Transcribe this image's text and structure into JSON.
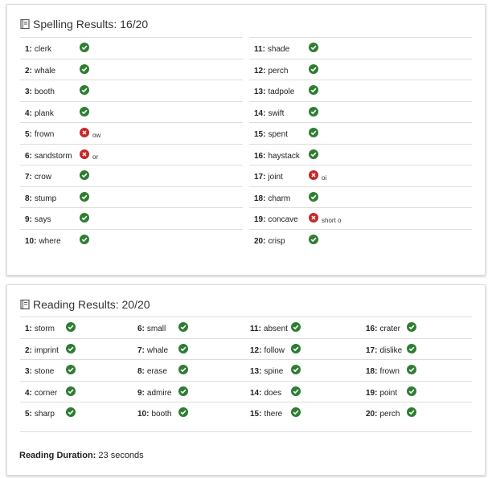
{
  "spelling": {
    "title": "Spelling Results: 16/20",
    "items": [
      {
        "number": "1:",
        "word": "clerk",
        "correct": true
      },
      {
        "number": "2:",
        "word": "whale",
        "correct": true
      },
      {
        "number": "3:",
        "word": "booth",
        "correct": true
      },
      {
        "number": "4:",
        "word": "plank",
        "correct": true
      },
      {
        "number": "5:",
        "word": "frown",
        "correct": false,
        "note": "ow"
      },
      {
        "number": "6:",
        "word": "sandstorm",
        "correct": false,
        "note": "or"
      },
      {
        "number": "7:",
        "word": "crow",
        "correct": true
      },
      {
        "number": "8:",
        "word": "stump",
        "correct": true
      },
      {
        "number": "9:",
        "word": "says",
        "correct": true
      },
      {
        "number": "10:",
        "word": "where",
        "correct": true
      },
      {
        "number": "11:",
        "word": "shade",
        "correct": true
      },
      {
        "number": "12:",
        "word": "perch",
        "correct": true
      },
      {
        "number": "13:",
        "word": "tadpole",
        "correct": true
      },
      {
        "number": "14:",
        "word": "swift",
        "correct": true
      },
      {
        "number": "15:",
        "word": "spent",
        "correct": true
      },
      {
        "number": "16:",
        "word": "haystack",
        "correct": true
      },
      {
        "number": "17:",
        "word": "joint",
        "correct": false,
        "note": "oi"
      },
      {
        "number": "18:",
        "word": "charm",
        "correct": true
      },
      {
        "number": "19:",
        "word": "concave",
        "correct": false,
        "note": "short o"
      },
      {
        "number": "20:",
        "word": "crisp",
        "correct": true
      }
    ]
  },
  "reading": {
    "title": "Reading Results: 20/20",
    "items": [
      {
        "number": "1:",
        "word": "storm",
        "correct": true
      },
      {
        "number": "2:",
        "word": "imprint",
        "correct": true
      },
      {
        "number": "3:",
        "word": "stone",
        "correct": true
      },
      {
        "number": "4:",
        "word": "corner",
        "correct": true
      },
      {
        "number": "5:",
        "word": "sharp",
        "correct": true
      },
      {
        "number": "6:",
        "word": "small",
        "correct": true
      },
      {
        "number": "7:",
        "word": "whale",
        "correct": true
      },
      {
        "number": "8:",
        "word": "erase",
        "correct": true
      },
      {
        "number": "9:",
        "word": "admire",
        "correct": true
      },
      {
        "number": "10:",
        "word": "booth",
        "correct": true
      },
      {
        "number": "11:",
        "word": "absent",
        "correct": true
      },
      {
        "number": "12:",
        "word": "follow",
        "correct": true
      },
      {
        "number": "13:",
        "word": "spine",
        "correct": true
      },
      {
        "number": "14:",
        "word": "does",
        "correct": true
      },
      {
        "number": "15:",
        "word": "there",
        "correct": true
      },
      {
        "number": "16:",
        "word": "crater",
        "correct": true
      },
      {
        "number": "17:",
        "word": "dislike",
        "correct": true
      },
      {
        "number": "18:",
        "word": "frown",
        "correct": true
      },
      {
        "number": "19:",
        "word": "point",
        "correct": true
      },
      {
        "number": "20:",
        "word": "perch",
        "correct": true
      }
    ],
    "duration_label": "Reading Duration:",
    "duration_value": "23 seconds"
  }
}
